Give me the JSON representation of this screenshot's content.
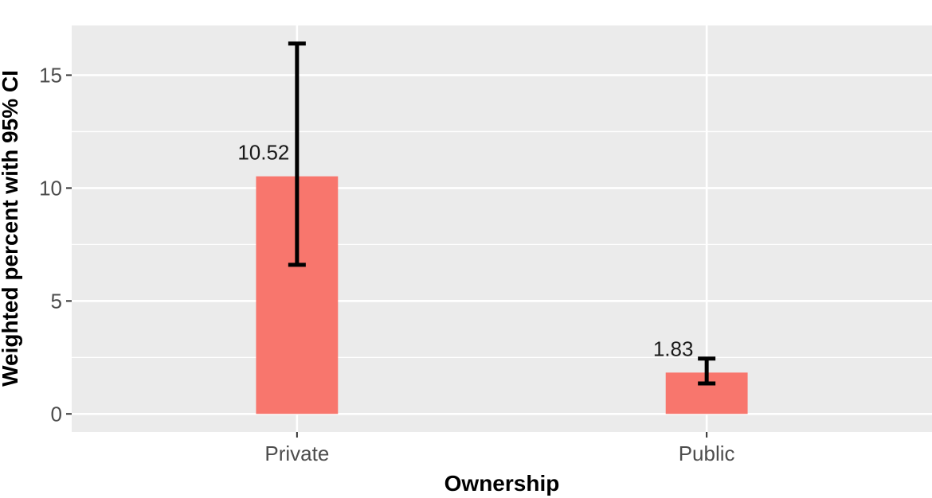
{
  "chart_data": {
    "type": "bar",
    "title": "",
    "xlabel": "Ownership",
    "ylabel": "Weighted percent with 95% CI",
    "categories": [
      "Private",
      "Public"
    ],
    "values": [
      10.52,
      1.83
    ],
    "value_labels": [
      "10.52",
      "1.83"
    ],
    "ci_low": [
      6.6,
      1.35
    ],
    "ci_high": [
      16.4,
      2.45
    ],
    "y_ticks": [
      0,
      5,
      10,
      15
    ],
    "y_tick_labels": [
      "0",
      "5",
      "10",
      "15"
    ],
    "ylim": [
      -0.8,
      17.2
    ],
    "grid": true,
    "legend": "none",
    "colors": {
      "bar": "#F8766D",
      "panel": "#EBEBEB",
      "grid": "#FFFFFF",
      "errorbar": "#000000"
    }
  }
}
